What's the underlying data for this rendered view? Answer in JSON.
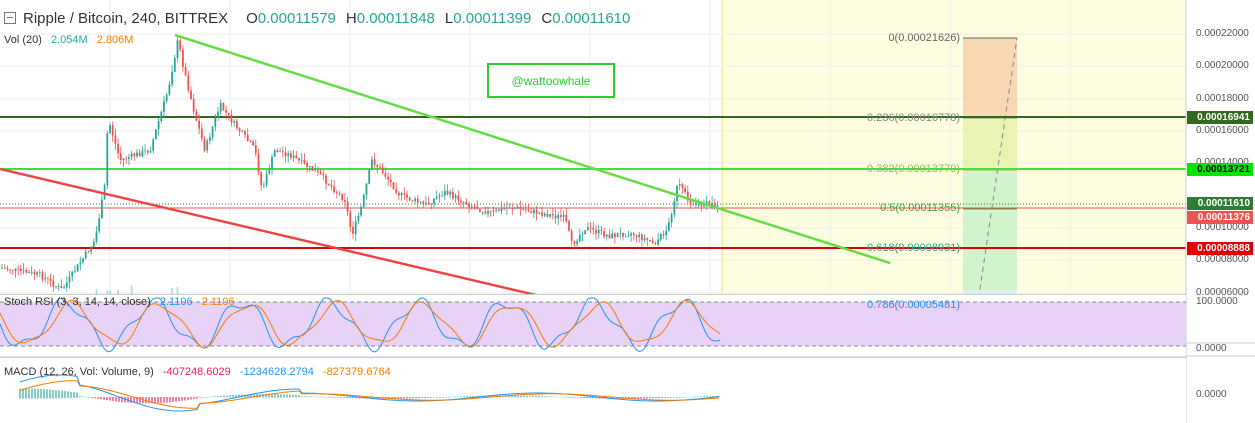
{
  "header": {
    "symbol": "Ripple / Bitcoin, 240, BITTREX",
    "o_label": "O",
    "o_value": "0.00011579",
    "h_label": "H",
    "h_value": "0.00011848",
    "l_label": "L",
    "l_value": "0.00011399",
    "c_label": "C",
    "c_value": "0.00011610"
  },
  "volume": {
    "label": "Vol (20)",
    "value": "2.054M",
    "ma_value": "2.806M"
  },
  "annotation": {
    "text": "@wattoowhale"
  },
  "fib_levels": [
    {
      "label": "0(0.00021626)",
      "color": "#666666"
    },
    {
      "label": "0.236(0.00016778)",
      "color": "#888888"
    },
    {
      "label": "0.382(0.00013779)",
      "color": "#8bc34a"
    },
    {
      "label": "0.5(0.00011355)",
      "color": "#43a047"
    },
    {
      "label": "0.618(0.00008931)",
      "color": "#26a69a"
    },
    {
      "label": "0.786(0.00005481)",
      "color": "#2196f3"
    }
  ],
  "price_axis": {
    "ticks": [
      "0.00022000",
      "0.00020000",
      "0.00018000",
      "0.00016000",
      "0.00014000",
      "0.00010000",
      "0.00008000",
      "0.00006000"
    ],
    "tags": [
      {
        "label": "0.00016941",
        "color": "#33691e",
        "text_color": "#ffffff"
      },
      {
        "label": "0.00013721",
        "color": "#00e600",
        "text_color": "#000000"
      },
      {
        "label": "0.00011610",
        "color": "#2e7d32",
        "text_color": "#ffffff"
      },
      {
        "label": "0.00011376",
        "color": "#ef5350",
        "text_color": "#ffffff"
      },
      {
        "label": "0.00008888",
        "color": "#e00000",
        "text_color": "#ffffff"
      }
    ]
  },
  "stoch_rsi": {
    "label": "Stoch RSI (3, 3, 14, 14, close)",
    "k_value": "2.1106",
    "d_value": "2.1106",
    "k_color": "#2196f3",
    "d_color": "#f57c00",
    "ticks": [
      "100.0000",
      "0.0000"
    ]
  },
  "macd": {
    "label": "MACD (12, 26, Vol: Volume, 9)",
    "hist_value": "-407248.6029",
    "macd_value": "-1234628.2794",
    "signal_value": "-827379.6764",
    "hist_color": "#e91e63",
    "macd_color": "#2196f3",
    "signal_color": "#f57c00",
    "ticks": [
      "0.0000"
    ]
  },
  "colors": {
    "up": "#26a69a",
    "down": "#ef5350",
    "resistance_line": "#66dd44",
    "support_line": "#ef4444",
    "fib_bg": "#fdfde0"
  }
}
